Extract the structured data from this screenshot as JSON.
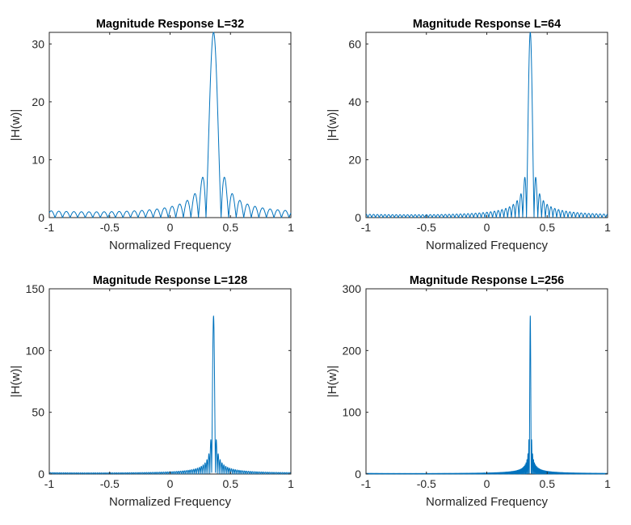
{
  "chart_data": [
    {
      "type": "line",
      "title": "Magnitude Response L=32",
      "xlabel": "Normalized Frequency",
      "ylabel": "|H(w)|",
      "xlim": [
        -1,
        1
      ],
      "ylim": [
        0,
        32
      ],
      "xticks": [
        -1,
        -0.5,
        0,
        0.5,
        1
      ],
      "xtick_labels": [
        "-1",
        "-0.5",
        "0",
        "0.5",
        "1"
      ],
      "yticks": [
        0,
        10,
        20,
        30
      ],
      "ytick_labels": [
        "0",
        "10",
        "20",
        "30"
      ],
      "grid": false,
      "series": [
        {
          "L": 32,
          "peak_frequency": 0.36,
          "peak_value": 32,
          "color": "#0072BD"
        }
      ]
    },
    {
      "type": "line",
      "title": "Magnitude Response L=64",
      "xlabel": "Normalized Frequency",
      "ylabel": "|H(w)|",
      "xlim": [
        -1,
        1
      ],
      "ylim": [
        0,
        64
      ],
      "xticks": [
        -1,
        -0.5,
        0,
        0.5,
        1
      ],
      "xtick_labels": [
        "-1",
        "-0.5",
        "0",
        "0.5",
        "1"
      ],
      "yticks": [
        0,
        20,
        40,
        60
      ],
      "ytick_labels": [
        "0",
        "20",
        "40",
        "60"
      ],
      "grid": false,
      "series": [
        {
          "L": 64,
          "peak_frequency": 0.36,
          "peak_value": 64,
          "color": "#0072BD"
        }
      ]
    },
    {
      "type": "line",
      "title": "Magnitude Response L=128",
      "xlabel": "Normalized Frequency",
      "ylabel": "|H(w)|",
      "xlim": [
        -1,
        1
      ],
      "ylim": [
        0,
        150
      ],
      "xticks": [
        -1,
        -0.5,
        0,
        0.5,
        1
      ],
      "xtick_labels": [
        "-1",
        "-0.5",
        "0",
        "0.5",
        "1"
      ],
      "yticks": [
        0,
        50,
        100,
        150
      ],
      "ytick_labels": [
        "0",
        "50",
        "100",
        "150"
      ],
      "grid": false,
      "series": [
        {
          "L": 128,
          "peak_frequency": 0.36,
          "peak_value": 128,
          "color": "#0072BD"
        }
      ]
    },
    {
      "type": "line",
      "title": "Magnitude Response L=256",
      "xlabel": "Normalized Frequency",
      "ylabel": "|H(w)|",
      "xlim": [
        -1,
        1
      ],
      "ylim": [
        0,
        300
      ],
      "xticks": [
        -1,
        -0.5,
        0,
        0.5,
        1
      ],
      "xtick_labels": [
        "-1",
        "-0.5",
        "0",
        "0.5",
        "1"
      ],
      "yticks": [
        0,
        100,
        200,
        300
      ],
      "ytick_labels": [
        "0",
        "100",
        "200",
        "300"
      ],
      "grid": false,
      "series": [
        {
          "L": 256,
          "peak_frequency": 0.36,
          "peak_value": 256,
          "color": "#0072BD"
        }
      ]
    }
  ]
}
